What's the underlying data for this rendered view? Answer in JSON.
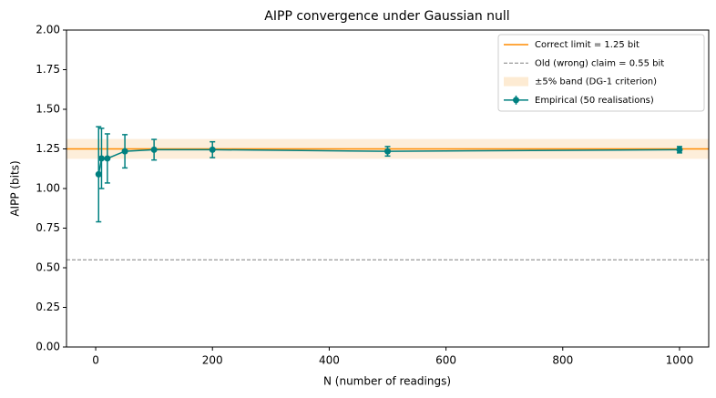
{
  "chart_data": {
    "type": "errorbar",
    "title": "AIPP convergence under Gaussian null",
    "xlabel": "N (number of readings)",
    "ylabel": "AIPP (bits)",
    "xlim": [
      -50,
      1050
    ],
    "ylim": [
      0,
      2
    ],
    "xticks": [
      0,
      200,
      400,
      600,
      800,
      1000
    ],
    "yticks": [
      {
        "value": 0,
        "label": "0.00"
      },
      {
        "value": 0.25,
        "label": "0.25"
      },
      {
        "value": 0.5,
        "label": "0.50"
      },
      {
        "value": 0.75,
        "label": "0.75"
      },
      {
        "value": 1,
        "label": "1.00"
      },
      {
        "value": 1.25,
        "label": "1.25"
      },
      {
        "value": 1.5,
        "label": "1.50"
      },
      {
        "value": 1.75,
        "label": "1.75"
      },
      {
        "value": 2,
        "label": "2.00"
      }
    ],
    "x": [
      5,
      10,
      20,
      50,
      100,
      200,
      500,
      1000
    ],
    "reference_lines": [
      {
        "name": "Correct limit = 1.25 bit",
        "value": 1.25,
        "color": "#ff8c00",
        "dashed": false
      },
      {
        "name": "Old (wrong) claim = 0.55 bit",
        "value": 0.55,
        "color": "#808080",
        "dashed": true
      }
    ],
    "band": {
      "name": "±5% band (DG-1 criterion)",
      "range": [
        1.1875,
        1.3125
      ],
      "color": "#fdebd3"
    },
    "series": [
      {
        "name": "Empirical (50 realisations)",
        "color": "#008080",
        "values": [
          1.09,
          1.19,
          1.19,
          1.235,
          1.245,
          1.245,
          1.235,
          1.245
        ],
        "errors": [
          0.3,
          0.19,
          0.155,
          0.105,
          0.065,
          0.05,
          0.03,
          0.02
        ]
      }
    ],
    "legend": "upper right",
    "grid": false
  }
}
